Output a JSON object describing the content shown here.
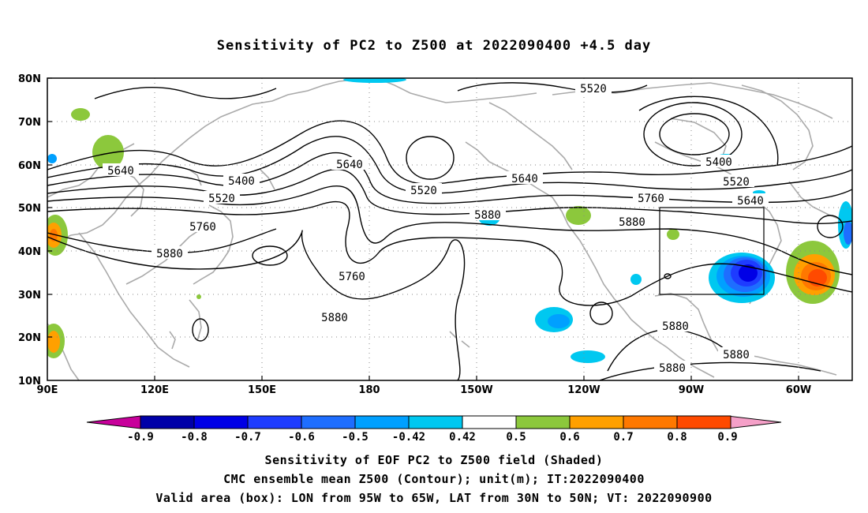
{
  "title": "Sensitivity of PC2 to Z500 at 2022090400 +4.5 day",
  "captions": {
    "line1": "Sensitivity of EOF PC2 to Z500 field (Shaded)",
    "line2": "CMC ensemble mean Z500 (Contour); unit(m); IT:2022090400",
    "line3": "Valid area (box): LON from 95W to 65W, LAT from 30N to 50N; VT: 2022090900"
  },
  "axes": {
    "lat_labels": [
      "80N",
      "70N",
      "60N",
      "50N",
      "40N",
      "30N",
      "20N",
      "10N"
    ],
    "lon_labels": [
      "90E",
      "120E",
      "150E",
      "180",
      "150W",
      "120W",
      "90W",
      "60W"
    ]
  },
  "contour_labels": [
    "5520",
    "5400",
    "5520",
    "5640",
    "5640",
    "5400",
    "5520",
    "5640",
    "5760",
    "5880",
    "5520",
    "5640",
    "5760",
    "5880",
    "5880",
    "5760",
    "5880",
    "5880",
    "5880",
    "5880"
  ],
  "colorbar": {
    "labels": [
      "-0.9",
      "-0.8",
      "-0.7",
      "-0.6",
      "-0.5",
      "-0.42",
      "0.42",
      "0.5",
      "0.6",
      "0.7",
      "0.8",
      "0.9"
    ],
    "colors": [
      "#0000a8",
      "#0000e6",
      "#1e3cff",
      "#1e6eff",
      "#00a0ff",
      "#00c8f0",
      "#ffffff",
      "#8cc83c",
      "#ffa000",
      "#ff7800",
      "#ff4a00",
      "#ff1e00"
    ],
    "low_end_color": "#c8009b",
    "high_end_color": "#f5a0c8"
  },
  "valid_box": {
    "lon_range": "95W to 65W",
    "lat_range": "30N to 50N"
  }
}
